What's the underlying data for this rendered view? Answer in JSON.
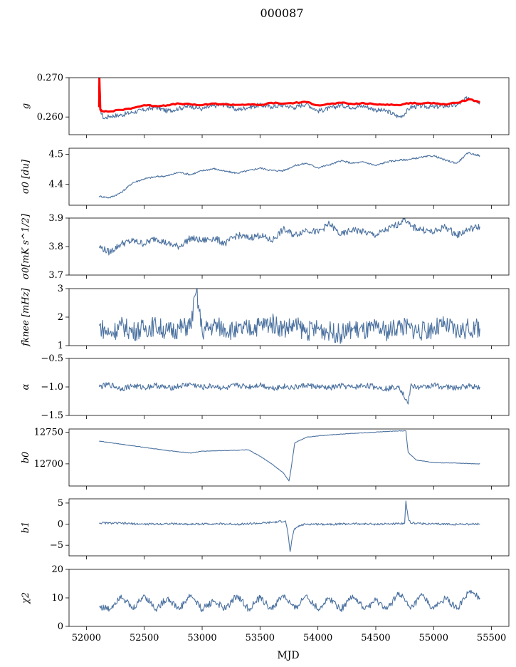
{
  "figure": {
    "title": "000087",
    "xlabel": "MJD"
  },
  "colors": {
    "series": "#4c72a0",
    "overlay": "#ff0000"
  },
  "chart_data": [
    {
      "type": "line",
      "ylabel": "g",
      "ylim": [
        0.2555,
        0.27
      ],
      "yticks": [
        0.26,
        0.27
      ],
      "yticklabels": [
        "0.260",
        "0.270"
      ],
      "xlim": [
        51850,
        55650
      ],
      "xticks": [
        52000,
        52500,
        53000,
        53500,
        54000,
        54500,
        55000,
        55500
      ],
      "xticklabels": [],
      "series": [
        {
          "name": "",
          "color": "#4c72a0",
          "x": [
            52110,
            52150,
            52200,
            52300,
            52400,
            52500,
            52600,
            52700,
            52800,
            52900,
            53000,
            53100,
            53200,
            53300,
            53400,
            53500,
            53600,
            53700,
            53800,
            53900,
            54000,
            54100,
            54200,
            54300,
            54400,
            54500,
            54600,
            54700,
            54750,
            54800,
            54900,
            55000,
            55100,
            55200,
            55300,
            55400
          ],
          "y": [
            0.2625,
            0.2596,
            0.2602,
            0.2605,
            0.2612,
            0.2618,
            0.2625,
            0.2615,
            0.2622,
            0.2628,
            0.262,
            0.2628,
            0.2632,
            0.2618,
            0.2625,
            0.263,
            0.2626,
            0.263,
            0.2624,
            0.2634,
            0.2615,
            0.2622,
            0.263,
            0.2625,
            0.2628,
            0.2618,
            0.2615,
            0.26,
            0.2608,
            0.2625,
            0.2628,
            0.2625,
            0.2628,
            0.263,
            0.265,
            0.2638
          ]
        },
        {
          "name": "",
          "color": "#ff0000",
          "x": [
            52110,
            52112,
            52120,
            52130,
            52200,
            52300,
            52400,
            52500,
            52600,
            52700,
            52800,
            52900,
            53000,
            53100,
            53200,
            53300,
            53400,
            53500,
            53600,
            53700,
            53800,
            53900,
            54000,
            54100,
            54200,
            54300,
            54400,
            54500,
            54600,
            54700,
            54800,
            54900,
            55000,
            55100,
            55200,
            55300,
            55400
          ],
          "y": [
            0.2625,
            0.27,
            0.262,
            0.2615,
            0.2614,
            0.2618,
            0.2623,
            0.263,
            0.2628,
            0.263,
            0.2634,
            0.2632,
            0.263,
            0.2634,
            0.2632,
            0.2631,
            0.2632,
            0.263,
            0.2636,
            0.2634,
            0.2636,
            0.2638,
            0.263,
            0.2633,
            0.2636,
            0.2633,
            0.2635,
            0.2632,
            0.2632,
            0.263,
            0.2636,
            0.2634,
            0.2636,
            0.2632,
            0.2636,
            0.2645,
            0.2638
          ]
        }
      ]
    },
    {
      "type": "line",
      "ylabel": "σ0 [du]",
      "ylim": [
        4.33,
        4.52
      ],
      "yticks": [
        4.4,
        4.5
      ],
      "yticklabels": [
        "4.4",
        "4.5"
      ],
      "xlim": [
        51850,
        55650
      ],
      "xticks": [
        52000,
        52500,
        53000,
        53500,
        54000,
        54500,
        55000,
        55500
      ],
      "xticklabels": [],
      "series": [
        {
          "name": "",
          "color": "#4c72a0",
          "x": [
            52110,
            52200,
            52300,
            52400,
            52500,
            52600,
            52700,
            52800,
            52900,
            53000,
            53100,
            53200,
            53300,
            53400,
            53500,
            53600,
            53700,
            53800,
            53900,
            54000,
            54100,
            54200,
            54300,
            54400,
            54500,
            54600,
            54700,
            54800,
            54900,
            55000,
            55100,
            55200,
            55300,
            55400
          ],
          "y": [
            4.36,
            4.355,
            4.372,
            4.405,
            4.418,
            4.425,
            4.428,
            4.44,
            4.432,
            4.445,
            4.452,
            4.443,
            4.437,
            4.445,
            4.454,
            4.446,
            4.445,
            4.462,
            4.47,
            4.455,
            4.465,
            4.478,
            4.47,
            4.474,
            4.462,
            4.475,
            4.48,
            4.483,
            4.49,
            4.495,
            4.48,
            4.47,
            4.505,
            4.495
          ]
        }
      ]
    },
    {
      "type": "line",
      "ylabel": "σ0[mK s^1/2]",
      "ylim": [
        3.7,
        3.9
      ],
      "yticks": [
        3.7,
        3.8,
        3.9
      ],
      "yticklabels": [
        "3.7",
        "3.8",
        "3.9"
      ],
      "xlim": [
        51850,
        55650
      ],
      "xticks": [
        52000,
        52500,
        53000,
        53500,
        54000,
        54500,
        55000,
        55500
      ],
      "xticklabels": [],
      "series": [
        {
          "name": "",
          "color": "#4c72a0",
          "x": [
            52110,
            52200,
            52300,
            52400,
            52500,
            52600,
            52700,
            52800,
            52900,
            53000,
            53100,
            53200,
            53300,
            53400,
            53500,
            53600,
            53700,
            53800,
            53900,
            54000,
            54100,
            54200,
            54300,
            54400,
            54500,
            54600,
            54700,
            54750,
            54800,
            54900,
            55000,
            55100,
            55200,
            55300,
            55400
          ],
          "y": [
            3.8,
            3.78,
            3.81,
            3.82,
            3.81,
            3.83,
            3.81,
            3.8,
            3.83,
            3.82,
            3.83,
            3.81,
            3.84,
            3.83,
            3.84,
            3.82,
            3.86,
            3.84,
            3.86,
            3.85,
            3.88,
            3.84,
            3.86,
            3.85,
            3.84,
            3.86,
            3.88,
            3.9,
            3.87,
            3.86,
            3.85,
            3.87,
            3.84,
            3.86,
            3.87
          ]
        }
      ]
    },
    {
      "type": "line",
      "ylabel": "fknee [mHz]",
      "ylim": [
        1,
        3
      ],
      "yticks": [
        1,
        2,
        3
      ],
      "yticklabels": [
        "1",
        "2",
        "3"
      ],
      "xlim": [
        51850,
        55650
      ],
      "xticks": [
        52000,
        52500,
        53000,
        53500,
        54000,
        54500,
        55000,
        55500
      ],
      "xticklabels": [],
      "series": [
        {
          "name": "",
          "color": "#4c72a0",
          "x": [
            52110,
            52200,
            52300,
            52400,
            52500,
            52600,
            52700,
            52800,
            52900,
            52950,
            53000,
            53100,
            53200,
            53300,
            53400,
            53500,
            53600,
            53700,
            53800,
            53900,
            54000,
            54100,
            54200,
            54300,
            54400,
            54500,
            54600,
            54700,
            54800,
            54900,
            55000,
            55100,
            55200,
            55300,
            55400
          ],
          "y": [
            1.7,
            1.4,
            1.7,
            1.5,
            1.6,
            1.7,
            1.5,
            1.6,
            1.7,
            2.9,
            1.5,
            1.7,
            1.6,
            1.5,
            1.6,
            1.7,
            1.8,
            1.6,
            1.7,
            1.5,
            1.6,
            1.5,
            1.4,
            1.6,
            1.5,
            1.6,
            1.5,
            1.7,
            1.6,
            1.5,
            1.6,
            1.7,
            1.5,
            1.6,
            1.6
          ]
        }
      ]
    },
    {
      "type": "line",
      "ylabel": "α",
      "ylim": [
        -1.5,
        -0.5
      ],
      "yticks": [
        -1.5,
        -1.0,
        -0.5
      ],
      "yticklabels": [
        "−1.5",
        "−1.0",
        "−0.5"
      ],
      "xlim": [
        51850,
        55650
      ],
      "xticks": [
        52000,
        52500,
        53000,
        53500,
        54000,
        54500,
        55000,
        55500
      ],
      "xticklabels": [],
      "series": [
        {
          "name": "",
          "color": "#4c72a0",
          "x": [
            52110,
            52200,
            52300,
            52400,
            52500,
            52600,
            52700,
            52800,
            52900,
            53000,
            53100,
            53200,
            53300,
            53400,
            53500,
            53600,
            53700,
            53800,
            53900,
            54000,
            54100,
            54200,
            54300,
            54400,
            54500,
            54600,
            54700,
            54780,
            54800,
            54900,
            55000,
            55100,
            55200,
            55300,
            55400
          ],
          "y": [
            -1.0,
            -0.96,
            -1.03,
            -0.98,
            -1.01,
            -0.97,
            -1.02,
            -0.99,
            -0.95,
            -1.01,
            -0.98,
            -1.03,
            -0.97,
            -1.0,
            -0.96,
            -1.02,
            -0.99,
            -1.01,
            -0.97,
            -1.0,
            -1.02,
            -0.98,
            -1.01,
            -0.97,
            -1.0,
            -1.03,
            -0.98,
            -1.3,
            -0.99,
            -1.01,
            -0.97,
            -1.0,
            -1.02,
            -0.98,
            -1.0
          ]
        }
      ]
    },
    {
      "type": "line",
      "ylabel": "b0",
      "ylim": [
        12665,
        12755
      ],
      "yticks": [
        12700,
        12750
      ],
      "yticklabels": [
        "12700",
        "12750"
      ],
      "xlim": [
        51850,
        55650
      ],
      "xticks": [
        52000,
        52500,
        53000,
        53500,
        54000,
        54500,
        55000,
        55500
      ],
      "xticklabels": [],
      "series": [
        {
          "name": "",
          "color": "#4c72a0",
          "x": [
            52110,
            52300,
            52500,
            52700,
            52900,
            53000,
            53200,
            53400,
            53500,
            53600,
            53700,
            53750,
            53760,
            53800,
            53900,
            54000,
            54200,
            54400,
            54600,
            54700,
            54760,
            54780,
            54850,
            55000,
            55200,
            55400
          ],
          "y": [
            12736,
            12731,
            12726,
            12721,
            12717,
            12720,
            12721,
            12722,
            12712,
            12700,
            12686,
            12673,
            12682,
            12733,
            12742,
            12744,
            12747,
            12749,
            12751,
            12752,
            12752,
            12718,
            12706,
            12702,
            12701,
            12700
          ]
        }
      ]
    },
    {
      "type": "line",
      "ylabel": "b1",
      "ylim": [
        -7.5,
        6
      ],
      "yticks": [
        -5,
        0,
        5
      ],
      "yticklabels": [
        "−5",
        "0",
        "5"
      ],
      "xlim": [
        51850,
        55650
      ],
      "xticks": [
        52000,
        52500,
        53000,
        53500,
        54000,
        54500,
        55000,
        55500
      ],
      "xticklabels": [],
      "series": [
        {
          "name": "",
          "color": "#4c72a0",
          "x": [
            52110,
            52300,
            52500,
            52700,
            52900,
            53100,
            53300,
            53500,
            53650,
            53720,
            53740,
            53760,
            53780,
            53800,
            53850,
            53900,
            54100,
            54300,
            54500,
            54700,
            54750,
            54760,
            54780,
            54800,
            55000,
            55200,
            55400
          ],
          "y": [
            0.3,
            0.2,
            0.0,
            0.1,
            0.0,
            0.1,
            0.0,
            0.2,
            0.5,
            0.8,
            -2.0,
            -6.5,
            -3.0,
            -1.0,
            -0.3,
            0.0,
            0.0,
            0.1,
            0.0,
            0.1,
            0.3,
            5.5,
            1.5,
            0.3,
            0.0,
            0.0,
            0.0
          ]
        }
      ]
    },
    {
      "type": "line",
      "ylabel": "χ2",
      "ylim": [
        0,
        20
      ],
      "yticks": [
        0,
        10,
        20
      ],
      "yticklabels": [
        "0",
        "10",
        "20"
      ],
      "xlim": [
        51850,
        55650
      ],
      "xticks": [
        52000,
        52500,
        53000,
        53500,
        54000,
        54500,
        55000,
        55500
      ],
      "xticklabels": [
        "52000",
        "52500",
        "53000",
        "53500",
        "54000",
        "54500",
        "55000",
        "55500"
      ],
      "series": [
        {
          "name": "",
          "color": "#4c72a0",
          "x": [
            52110,
            52200,
            52300,
            52400,
            52500,
            52600,
            52700,
            52800,
            52900,
            53000,
            53100,
            53200,
            53300,
            53400,
            53500,
            53600,
            53700,
            53800,
            53900,
            54000,
            54100,
            54200,
            54300,
            54400,
            54500,
            54600,
            54700,
            54800,
            54900,
            55000,
            55100,
            55200,
            55300,
            55400
          ],
          "y": [
            7,
            6,
            11,
            6,
            11,
            6,
            10,
            6,
            11,
            6,
            9,
            6,
            11,
            6,
            10,
            6,
            11,
            6,
            11,
            6,
            10,
            6,
            11,
            6,
            9,
            6,
            12,
            6,
            11,
            6,
            10,
            6,
            12,
            10
          ]
        }
      ]
    }
  ]
}
